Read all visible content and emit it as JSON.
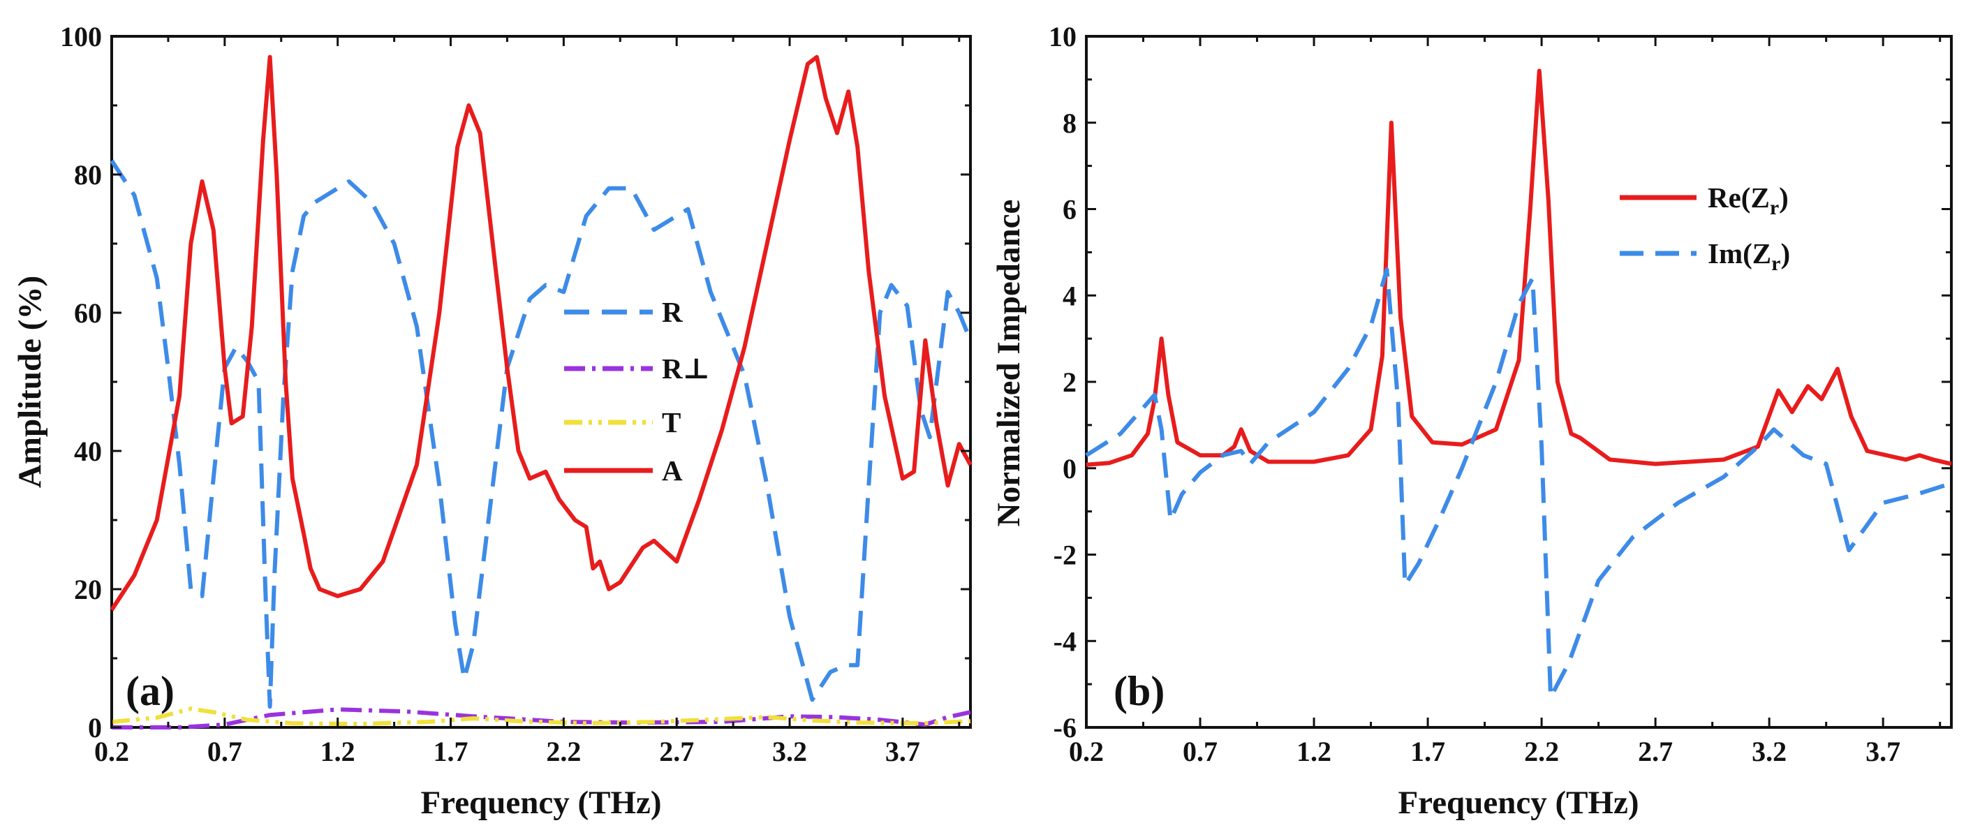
{
  "chart_data": [
    {
      "type": "line",
      "panel_label": "(a)",
      "xlabel": "Frequency (THz)",
      "ylabel": "Amplitude (%)",
      "xlim": [
        0.2,
        4.0
      ],
      "ylim": [
        0,
        100
      ],
      "xticks": [
        0.2,
        0.7,
        1.2,
        1.7,
        2.2,
        2.7,
        3.2,
        3.7
      ],
      "xtick_labels": [
        "0.2",
        "0.7",
        "1.2",
        "1.7",
        "2.2",
        "2.7",
        "3.2",
        "3.7"
      ],
      "yticks": [
        0,
        20,
        40,
        60,
        80,
        100
      ],
      "ytick_labels": [
        "0",
        "20",
        "40",
        "60",
        "80",
        "100"
      ],
      "legend": {
        "position": "center"
      },
      "series": [
        {
          "name": "R",
          "color": "#3d8be8",
          "dash": "dashed",
          "points": [
            [
              0.2,
              82
            ],
            [
              0.3,
              77
            ],
            [
              0.4,
              65
            ],
            [
              0.45,
              52
            ],
            [
              0.5,
              38
            ],
            [
              0.55,
              20
            ],
            [
              0.6,
              19
            ],
            [
              0.65,
              36
            ],
            [
              0.7,
              52
            ],
            [
              0.75,
              55
            ],
            [
              0.8,
              53
            ],
            [
              0.85,
              50
            ],
            [
              0.88,
              20
            ],
            [
              0.9,
              3
            ],
            [
              0.92,
              22
            ],
            [
              0.96,
              48
            ],
            [
              1.0,
              66
            ],
            [
              1.05,
              74
            ],
            [
              1.1,
              76
            ],
            [
              1.2,
              78
            ],
            [
              1.25,
              79
            ],
            [
              1.35,
              76
            ],
            [
              1.45,
              70
            ],
            [
              1.55,
              58
            ],
            [
              1.65,
              35
            ],
            [
              1.72,
              15
            ],
            [
              1.76,
              7
            ],
            [
              1.8,
              12
            ],
            [
              1.86,
              28
            ],
            [
              1.95,
              52
            ],
            [
              2.05,
              62
            ],
            [
              2.12,
              64
            ],
            [
              2.2,
              63
            ],
            [
              2.3,
              74
            ],
            [
              2.4,
              78
            ],
            [
              2.5,
              78
            ],
            [
              2.6,
              72
            ],
            [
              2.75,
              75
            ],
            [
              2.85,
              63
            ],
            [
              3.0,
              51
            ],
            [
              3.1,
              35
            ],
            [
              3.2,
              16
            ],
            [
              3.3,
              4
            ],
            [
              3.38,
              8
            ],
            [
              3.45,
              9
            ],
            [
              3.5,
              9
            ],
            [
              3.55,
              35
            ],
            [
              3.6,
              60
            ],
            [
              3.65,
              64
            ],
            [
              3.72,
              61
            ],
            [
              3.78,
              46
            ],
            [
              3.82,
              42
            ],
            [
              3.9,
              63
            ],
            [
              3.95,
              60
            ],
            [
              4.0,
              56
            ]
          ]
        },
        {
          "name": "R⊥",
          "color": "#9933dd",
          "dash": "dashdot",
          "points": [
            [
              0.2,
              0
            ],
            [
              0.5,
              0
            ],
            [
              0.7,
              0.4
            ],
            [
              0.9,
              1.8
            ],
            [
              1.2,
              2.6
            ],
            [
              1.5,
              2.3
            ],
            [
              1.8,
              1.6
            ],
            [
              2.0,
              1.2
            ],
            [
              2.2,
              0.8
            ],
            [
              2.5,
              0.7
            ],
            [
              2.9,
              0.8
            ],
            [
              3.2,
              1.6
            ],
            [
              3.4,
              1.5
            ],
            [
              3.6,
              1.1
            ],
            [
              3.8,
              0.4
            ],
            [
              3.9,
              1.5
            ],
            [
              4.0,
              2.2
            ]
          ]
        },
        {
          "name": "T",
          "color": "#f0e03a",
          "dash": "dashdotdot",
          "points": [
            [
              0.2,
              0.8
            ],
            [
              0.4,
              1.4
            ],
            [
              0.55,
              2.7
            ],
            [
              0.65,
              2.2
            ],
            [
              0.8,
              1.1
            ],
            [
              1.0,
              0.6
            ],
            [
              1.3,
              0.5
            ],
            [
              1.6,
              0.8
            ],
            [
              1.8,
              1.3
            ],
            [
              2.0,
              0.9
            ],
            [
              2.3,
              0.6
            ],
            [
              2.6,
              0.8
            ],
            [
              2.9,
              1.2
            ],
            [
              3.1,
              1.5
            ],
            [
              3.3,
              1.0
            ],
            [
              3.5,
              0.7
            ],
            [
              3.8,
              0.6
            ],
            [
              4.0,
              0.9
            ]
          ]
        },
        {
          "name": "A",
          "color": "#e81c1c",
          "dash": "solid",
          "points": [
            [
              0.2,
              17
            ],
            [
              0.3,
              22
            ],
            [
              0.4,
              30
            ],
            [
              0.5,
              48
            ],
            [
              0.55,
              70
            ],
            [
              0.6,
              79
            ],
            [
              0.65,
              72
            ],
            [
              0.7,
              52
            ],
            [
              0.73,
              44
            ],
            [
              0.78,
              45
            ],
            [
              0.82,
              58
            ],
            [
              0.87,
              85
            ],
            [
              0.9,
              97
            ],
            [
              0.93,
              80
            ],
            [
              0.97,
              50
            ],
            [
              1.0,
              36
            ],
            [
              1.05,
              28
            ],
            [
              1.08,
              23
            ],
            [
              1.12,
              20
            ],
            [
              1.2,
              19
            ],
            [
              1.3,
              20
            ],
            [
              1.4,
              24
            ],
            [
              1.55,
              38
            ],
            [
              1.65,
              60
            ],
            [
              1.73,
              84
            ],
            [
              1.78,
              90
            ],
            [
              1.83,
              86
            ],
            [
              1.9,
              66
            ],
            [
              1.95,
              52
            ],
            [
              2.0,
              40
            ],
            [
              2.05,
              36
            ],
            [
              2.12,
              37
            ],
            [
              2.18,
              33
            ],
            [
              2.25,
              30
            ],
            [
              2.3,
              29
            ],
            [
              2.33,
              23
            ],
            [
              2.36,
              24
            ],
            [
              2.4,
              20
            ],
            [
              2.45,
              21
            ],
            [
              2.55,
              26
            ],
            [
              2.6,
              27
            ],
            [
              2.7,
              24
            ],
            [
              2.8,
              33
            ],
            [
              2.9,
              43
            ],
            [
              3.0,
              55
            ],
            [
              3.1,
              70
            ],
            [
              3.2,
              85
            ],
            [
              3.28,
              96
            ],
            [
              3.32,
              97
            ],
            [
              3.36,
              91
            ],
            [
              3.41,
              86
            ],
            [
              3.46,
              92
            ],
            [
              3.5,
              84
            ],
            [
              3.55,
              66
            ],
            [
              3.62,
              48
            ],
            [
              3.7,
              36
            ],
            [
              3.75,
              37
            ],
            [
              3.8,
              56
            ],
            [
              3.85,
              44
            ],
            [
              3.9,
              35
            ],
            [
              3.95,
              41
            ],
            [
              4.0,
              38
            ]
          ]
        }
      ]
    },
    {
      "type": "line",
      "panel_label": "(b)",
      "xlabel": "Frequency (THz)",
      "ylabel": "Normalized Impedance",
      "xlim": [
        0.2,
        4.0
      ],
      "ylim": [
        -6,
        10
      ],
      "xticks": [
        0.2,
        0.7,
        1.2,
        1.7,
        2.2,
        2.7,
        3.2,
        3.7
      ],
      "xtick_labels": [
        "0.2",
        "0.7",
        "1.2",
        "1.7",
        "2.2",
        "2.7",
        "3.2",
        "3.7"
      ],
      "yticks": [
        -6,
        -4,
        -2,
        0,
        2,
        4,
        6,
        8,
        10
      ],
      "ytick_labels": [
        "-6",
        "-4",
        "-2",
        "0",
        "2",
        "4",
        "6",
        "8",
        "10"
      ],
      "legend": {
        "position": "top-right"
      },
      "series": [
        {
          "name": "Re(Z",
          "subscript": "r",
          "suffix": ")",
          "color": "#e81c1c",
          "dash": "solid",
          "points": [
            [
              0.2,
              0.08
            ],
            [
              0.3,
              0.12
            ],
            [
              0.4,
              0.3
            ],
            [
              0.47,
              0.8
            ],
            [
              0.5,
              1.6
            ],
            [
              0.53,
              3.0
            ],
            [
              0.56,
              1.7
            ],
            [
              0.6,
              0.6
            ],
            [
              0.7,
              0.3
            ],
            [
              0.8,
              0.3
            ],
            [
              0.85,
              0.5
            ],
            [
              0.88,
              0.9
            ],
            [
              0.92,
              0.4
            ],
            [
              1.0,
              0.15
            ],
            [
              1.2,
              0.15
            ],
            [
              1.35,
              0.3
            ],
            [
              1.45,
              0.9
            ],
            [
              1.5,
              2.6
            ],
            [
              1.54,
              8.0
            ],
            [
              1.58,
              3.5
            ],
            [
              1.63,
              1.2
            ],
            [
              1.72,
              0.6
            ],
            [
              1.85,
              0.55
            ],
            [
              2.0,
              0.9
            ],
            [
              2.1,
              2.5
            ],
            [
              2.15,
              6.0
            ],
            [
              2.19,
              9.2
            ],
            [
              2.23,
              6.2
            ],
            [
              2.27,
              2.0
            ],
            [
              2.33,
              0.8
            ],
            [
              2.37,
              0.7
            ],
            [
              2.5,
              0.2
            ],
            [
              2.7,
              0.1
            ],
            [
              3.0,
              0.2
            ],
            [
              3.15,
              0.5
            ],
            [
              3.24,
              1.8
            ],
            [
              3.3,
              1.3
            ],
            [
              3.37,
              1.9
            ],
            [
              3.43,
              1.6
            ],
            [
              3.5,
              2.3
            ],
            [
              3.56,
              1.2
            ],
            [
              3.63,
              0.4
            ],
            [
              3.8,
              0.2
            ],
            [
              3.86,
              0.3
            ],
            [
              3.92,
              0.2
            ],
            [
              4.0,
              0.1
            ]
          ]
        },
        {
          "name": "Im(Z",
          "subscript": "r",
          "suffix": ")",
          "color": "#3d8be8",
          "dash": "dashed",
          "points": [
            [
              0.2,
              0.3
            ],
            [
              0.35,
              0.8
            ],
            [
              0.45,
              1.4
            ],
            [
              0.5,
              1.7
            ],
            [
              0.53,
              0.9
            ],
            [
              0.57,
              -1.2
            ],
            [
              0.62,
              -0.6
            ],
            [
              0.7,
              -0.1
            ],
            [
              0.8,
              0.3
            ],
            [
              0.88,
              0.4
            ],
            [
              0.92,
              0.1
            ],
            [
              1.0,
              0.6
            ],
            [
              1.2,
              1.3
            ],
            [
              1.35,
              2.3
            ],
            [
              1.45,
              3.3
            ],
            [
              1.52,
              4.6
            ],
            [
              1.57,
              1.5
            ],
            [
              1.6,
              -2.7
            ],
            [
              1.66,
              -2.2
            ],
            [
              1.75,
              -1.2
            ],
            [
              1.85,
              0.0
            ],
            [
              2.0,
              2.0
            ],
            [
              2.1,
              3.8
            ],
            [
              2.16,
              4.4
            ],
            [
              2.2,
              0.5
            ],
            [
              2.24,
              -5.3
            ],
            [
              2.32,
              -4.5
            ],
            [
              2.45,
              -2.6
            ],
            [
              2.6,
              -1.6
            ],
            [
              2.8,
              -0.8
            ],
            [
              3.0,
              -0.2
            ],
            [
              3.15,
              0.5
            ],
            [
              3.22,
              0.9
            ],
            [
              3.35,
              0.3
            ],
            [
              3.45,
              0.1
            ],
            [
              3.55,
              -1.9
            ],
            [
              3.7,
              -0.8
            ],
            [
              3.85,
              -0.6
            ],
            [
              4.0,
              -0.35
            ]
          ]
        }
      ]
    }
  ]
}
